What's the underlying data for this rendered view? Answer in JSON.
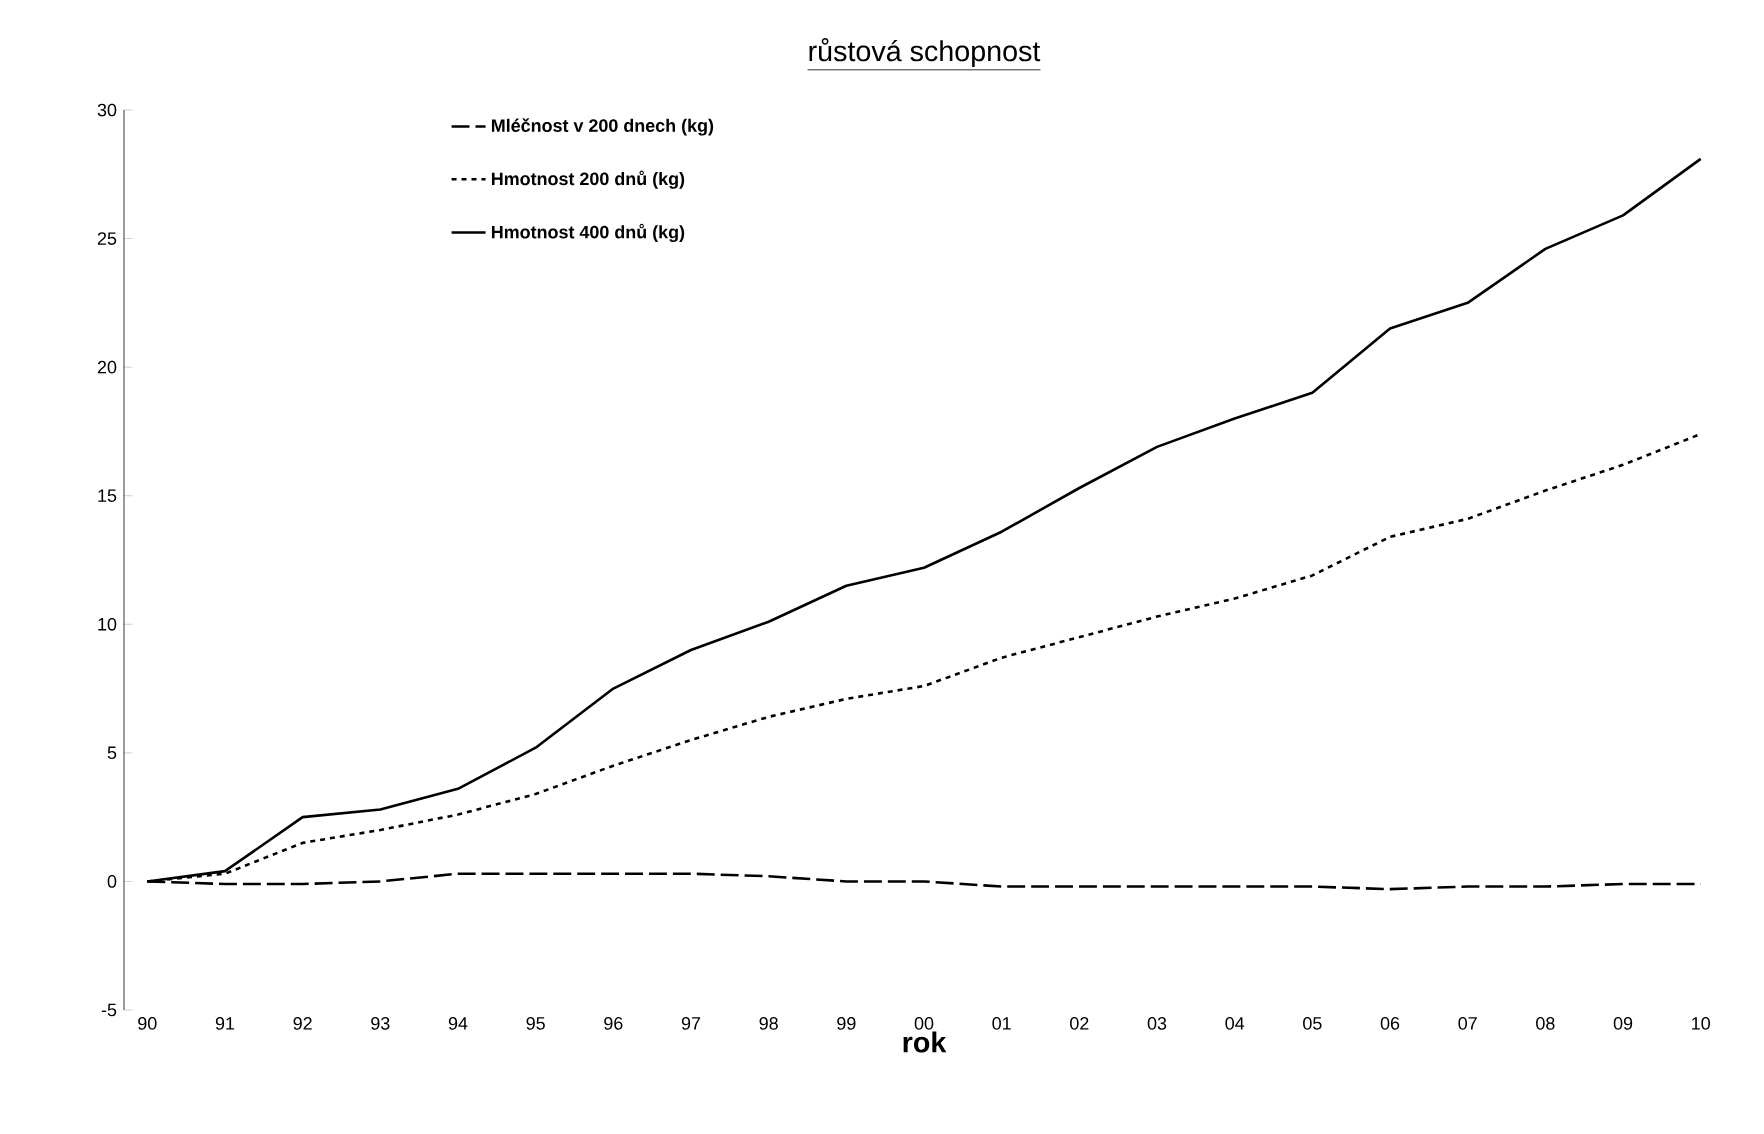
{
  "chart_data": {
    "type": "line",
    "title": "růstová schopnost",
    "xlabel": "rok",
    "categories": [
      "90",
      "91",
      "92",
      "93",
      "94",
      "95",
      "96",
      "97",
      "98",
      "99",
      "00",
      "01",
      "02",
      "03",
      "04",
      "05",
      "06",
      "07",
      "08",
      "09",
      "10"
    ],
    "series": [
      {
        "name": "Mléčnost v 200 dnech (kg)",
        "color": "#000000",
        "line_style": "dashed",
        "values": [
          0,
          -0.1,
          -0.1,
          0,
          0.3,
          0.3,
          0.3,
          0.3,
          0.2,
          0,
          0,
          -0.2,
          -0.2,
          -0.2,
          -0.2,
          -0.2,
          -0.3,
          -0.2,
          -0.2,
          -0.1,
          -0.1
        ]
      },
      {
        "name": "Hmotnost 200 dnů  (kg)",
        "color": "#000000",
        "line_style": "dotted",
        "values": [
          0,
          0.3,
          1.5,
          2.0,
          2.6,
          3.4,
          4.5,
          5.5,
          6.4,
          7.1,
          7.6,
          8.7,
          9.5,
          10.3,
          11.0,
          11.9,
          13.4,
          14.1,
          15.2,
          16.2,
          17.4
        ]
      },
      {
        "name": "Hmotnost 400 dnů (kg)",
        "color": "#000000",
        "line_style": "solid",
        "values": [
          0,
          0.4,
          2.5,
          2.8,
          3.6,
          5.2,
          7.5,
          9.0,
          10.1,
          11.5,
          12.2,
          13.6,
          15.3,
          16.9,
          18.0,
          19.0,
          21.5,
          22.5,
          24.6,
          25.9,
          28.1
        ]
      }
    ],
    "ylim": [
      -5,
      30
    ],
    "yticks": [
      -5,
      0,
      5,
      10,
      15,
      20,
      25,
      30
    ],
    "grid": false,
    "legend": "top left",
    "marker": "none"
  }
}
